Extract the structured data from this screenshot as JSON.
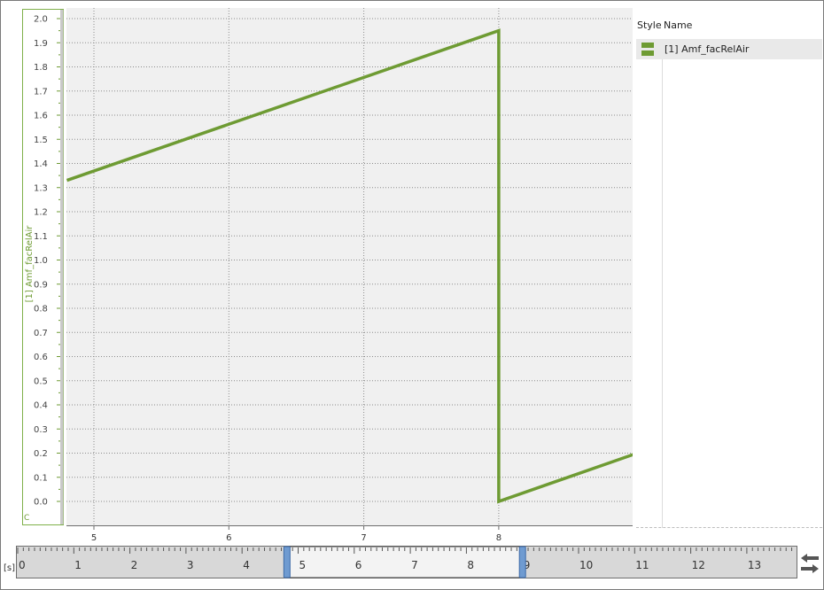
{
  "legend": {
    "style_header": "Style",
    "name_header": "Name",
    "items": [
      {
        "label": "[1] Amf_facRelAir",
        "color": "#6e9b33"
      }
    ]
  },
  "chart_data": {
    "type": "line",
    "series": [
      {
        "name": "[1] Amf_facRelAir",
        "color": "#6e9b33",
        "x": [
          4.8,
          8.0,
          8.0,
          9.0
        ],
        "y": [
          1.33,
          1.95,
          0.0,
          0.195
        ]
      }
    ],
    "xlim": [
      4.8,
      9.0
    ],
    "ylim": [
      -0.1,
      2.05
    ],
    "x_ticks": [
      5,
      6,
      7,
      8
    ],
    "y_ticks": [
      0.0,
      0.1,
      0.2,
      0.3,
      0.4,
      0.5,
      0.6,
      0.7,
      0.8,
      0.9,
      1.0,
      1.1,
      1.2,
      1.3,
      1.4,
      1.5,
      1.6,
      1.7,
      1.8,
      1.9,
      2.0
    ],
    "ylabel": "[1] Amf_facRelAir",
    "axis_footer": "C",
    "grid": true
  },
  "timeline": {
    "unit": "[s]",
    "range": [
      0,
      14
    ],
    "ticks": [
      0,
      1,
      2,
      3,
      4,
      5,
      6,
      7,
      8,
      9,
      10,
      11,
      12,
      13
    ],
    "window": [
      4.8,
      9.0
    ]
  },
  "colors": {
    "plot_bg": "#f0f0f0",
    "line": "#6e9b33",
    "window_handle": "#6f9bd1"
  },
  "icons": {
    "timeline_nav": "swap-arrows-icon"
  }
}
